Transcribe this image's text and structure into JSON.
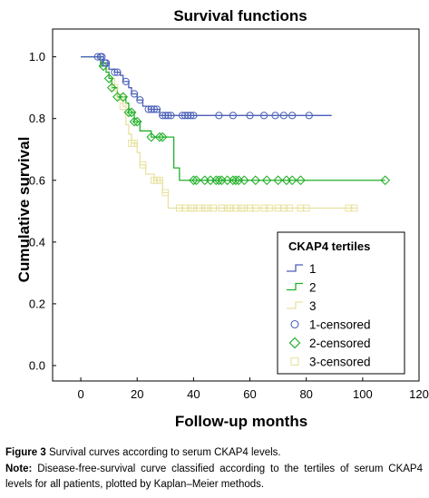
{
  "chart_data": {
    "type": "line",
    "title": "Survival functions",
    "xlabel": "Follow-up months",
    "ylabel": "Cumulative survival",
    "xlim": [
      -10,
      120
    ],
    "ylim": [
      -0.05,
      1.09
    ],
    "xticks": [
      0,
      20,
      40,
      60,
      80,
      100,
      120
    ],
    "yticks": [
      0.0,
      0.2,
      0.4,
      0.6,
      0.8,
      1.0
    ],
    "grid": false,
    "step": true,
    "legend": {
      "title": "CKAP4 tertiles",
      "placement": "bottom-right",
      "entries": [
        "1",
        "2",
        "3",
        "1-censored",
        "2-censored",
        "3-censored"
      ]
    },
    "series": [
      {
        "name": "1",
        "color": "#4a5fb8",
        "steps": [
          [
            0,
            1.0
          ],
          [
            8,
            0.98
          ],
          [
            10,
            0.96
          ],
          [
            12,
            0.95
          ],
          [
            14,
            0.94
          ],
          [
            15,
            0.92
          ],
          [
            17,
            0.9
          ],
          [
            18,
            0.88
          ],
          [
            20,
            0.86
          ],
          [
            22,
            0.84
          ],
          [
            24,
            0.83
          ],
          [
            28,
            0.81
          ],
          [
            89,
            0.81
          ]
        ],
        "censored": [
          6,
          7,
          7.5,
          8.5,
          9,
          12,
          13,
          16,
          19,
          21,
          24,
          25,
          26,
          27,
          29,
          30,
          31,
          32,
          36,
          37,
          38,
          39,
          40,
          49,
          54,
          60,
          65,
          69,
          72,
          75,
          81
        ]
      },
      {
        "name": "2",
        "color": "#22b02a",
        "steps": [
          [
            0,
            1.0
          ],
          [
            7,
            0.97
          ],
          [
            9,
            0.95
          ],
          [
            10,
            0.93
          ],
          [
            11,
            0.9
          ],
          [
            13,
            0.87
          ],
          [
            16,
            0.85
          ],
          [
            17,
            0.82
          ],
          [
            19,
            0.79
          ],
          [
            21,
            0.76
          ],
          [
            25,
            0.74
          ],
          [
            33,
            0.64
          ],
          [
            35,
            0.6
          ],
          [
            108,
            0.6
          ]
        ],
        "censored": [
          8,
          10,
          11,
          13,
          15,
          17,
          18,
          19,
          20,
          25,
          28,
          29,
          40,
          41,
          44,
          46,
          48,
          49,
          50,
          52,
          54,
          55,
          56,
          58,
          62,
          66,
          70,
          73,
          75,
          78,
          108
        ]
      },
      {
        "name": "3",
        "color": "#e8e2a0",
        "steps": [
          [
            0,
            1.0
          ],
          [
            7,
            0.98
          ],
          [
            9,
            0.96
          ],
          [
            10,
            0.93
          ],
          [
            12,
            0.9
          ],
          [
            13,
            0.87
          ],
          [
            15,
            0.84
          ],
          [
            16,
            0.78
          ],
          [
            17,
            0.75
          ],
          [
            18,
            0.72
          ],
          [
            20,
            0.69
          ],
          [
            21,
            0.65
          ],
          [
            23,
            0.62
          ],
          [
            26,
            0.6
          ],
          [
            29,
            0.56
          ],
          [
            31,
            0.51
          ],
          [
            98,
            0.51
          ]
        ],
        "censored": [
          12,
          14,
          15,
          18,
          19,
          22,
          26,
          27,
          28,
          30,
          35,
          37,
          39,
          40,
          42,
          44,
          45,
          47,
          50,
          52,
          53,
          55,
          57,
          58,
          60,
          62,
          65,
          67,
          70,
          72,
          74,
          78,
          80,
          95,
          97
        ]
      }
    ]
  },
  "caption": {
    "label": "Figure 3",
    "text": "Survival curves according to serum CKAP4 levels.",
    "note_label": "Note:",
    "note_text": "Disease-free-survival curve classified according to the tertiles of serum CKAP4 levels for all patients, plotted by Kaplan–Meier methods."
  }
}
